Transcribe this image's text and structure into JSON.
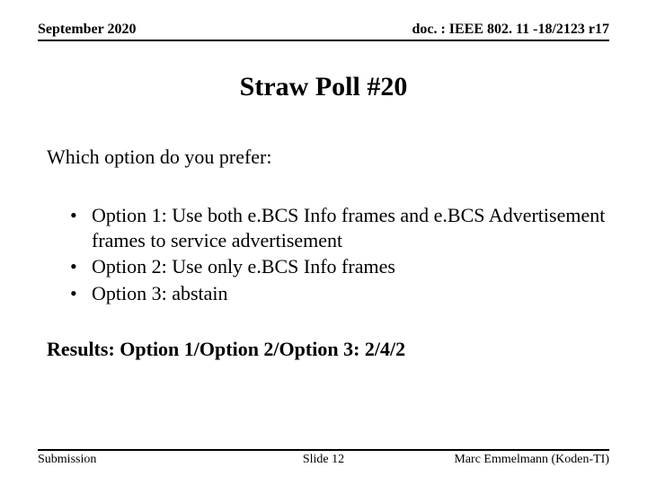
{
  "header": {
    "date": "September 2020",
    "docref": "doc. : IEEE 802. 11 -18/2123 r17"
  },
  "title": "Straw Poll #20",
  "question": "Which option do you prefer:",
  "options": [
    "Option 1: Use both e.BCS Info frames and e.BCS Advertisement frames to service advertisement",
    "Option 2: Use only e.BCS Info frames",
    "Option 3: abstain"
  ],
  "results": "Results: Option 1/Option 2/Option 3: 2/4/2",
  "footer": {
    "left": "Submission",
    "center": "Slide 12",
    "right": "Marc Emmelmann (Koden-TI)"
  },
  "style": {
    "background_color": "#ffffff",
    "text_color": "#000000",
    "rule_color": "#000000",
    "font_family": "Times New Roman",
    "title_fontsize_pt": 30,
    "body_fontsize_pt": 22,
    "header_fontsize_pt": 16,
    "footer_fontsize_pt": 14,
    "aspect": "720x540"
  }
}
